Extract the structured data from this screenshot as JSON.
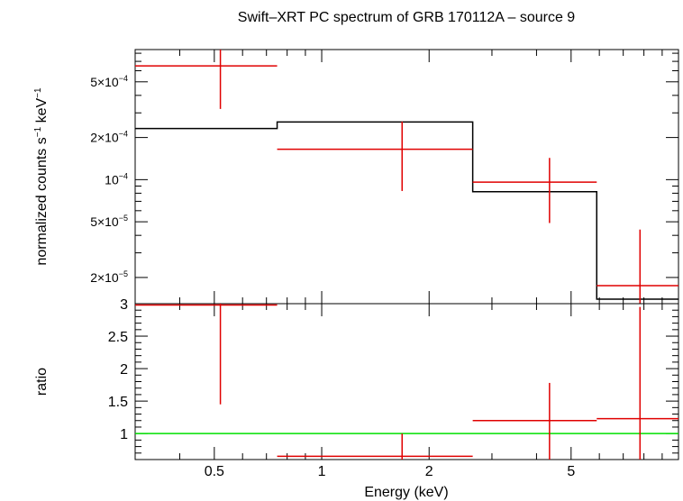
{
  "chart_data": {
    "type": "scatter",
    "title": "Swift–XRT PC spectrum of GRB 170112A – source 9",
    "xlabel": "Energy (keV)",
    "x_scale": "log",
    "xlim": [
      0.3,
      10
    ],
    "x_ticks": [
      {
        "value": 0.5,
        "label": "0.5"
      },
      {
        "value": 1,
        "label": "1"
      },
      {
        "value": 2,
        "label": "2"
      },
      {
        "value": 5,
        "label": "5"
      }
    ],
    "top_panel": {
      "ylabel_main": "normalized counts s",
      "ylabel_sup1": "−1",
      "ylabel_mid": " keV",
      "ylabel_sup2": "−1",
      "y_scale": "log",
      "ylim": [
        1.3e-05,
        0.00085
      ],
      "y_ticks": [
        {
          "value": 0.0005,
          "mant": "5×10",
          "exp": "−4"
        },
        {
          "value": 0.0002,
          "mant": "2×10",
          "exp": "−4"
        },
        {
          "value": 0.0001,
          "mant": "10",
          "exp": "−4"
        },
        {
          "value": 5e-05,
          "mant": "5×10",
          "exp": "−5"
        },
        {
          "value": 2e-05,
          "mant": "2×10",
          "exp": "−5"
        }
      ],
      "data": [
        {
          "xlo": 0.3,
          "xhi": 0.75,
          "x": 0.52,
          "y": 0.00065,
          "ylo": 0.00032,
          "yhi": 0.00085
        },
        {
          "xlo": 0.75,
          "xhi": 2.65,
          "x": 1.68,
          "y": 0.000165,
          "ylo": 8.3e-05,
          "yhi": 0.00026
        },
        {
          "xlo": 2.65,
          "xhi": 5.9,
          "x": 4.35,
          "y": 9.6e-05,
          "ylo": 4.9e-05,
          "yhi": 0.000143
        },
        {
          "xlo": 5.9,
          "xhi": 10,
          "x": 7.8,
          "y": 1.75e-05,
          "ylo": 1.25e-05,
          "yhi": 4.4e-05
        }
      ],
      "model": [
        {
          "xlo": 0.3,
          "xhi": 0.75,
          "y": 0.000232
        },
        {
          "xlo": 0.75,
          "xhi": 2.65,
          "y": 0.000258
        },
        {
          "xlo": 2.65,
          "xhi": 5.9,
          "y": 8.2e-05
        },
        {
          "xlo": 5.9,
          "xhi": 10,
          "y": 1.4e-05
        }
      ]
    },
    "bottom_panel": {
      "ylabel": "ratio",
      "y_scale": "linear",
      "ylim": [
        0.6,
        3.0
      ],
      "y_ticks": [
        {
          "value": 1,
          "label": "1"
        },
        {
          "value": 1.5,
          "label": "1.5"
        },
        {
          "value": 2,
          "label": "2"
        },
        {
          "value": 2.5,
          "label": "2.5"
        },
        {
          "value": 3,
          "label": "3"
        }
      ],
      "reference_line": 1,
      "data": [
        {
          "xlo": 0.3,
          "xhi": 0.75,
          "x": 0.52,
          "y": 2.98,
          "ylo": 1.45,
          "yhi": 3.0
        },
        {
          "xlo": 0.75,
          "xhi": 2.65,
          "x": 1.68,
          "y": 0.65,
          "ylo": 0.6,
          "yhi": 1.0
        },
        {
          "xlo": 2.65,
          "xhi": 5.9,
          "x": 4.35,
          "y": 1.2,
          "ylo": 0.6,
          "yhi": 1.78
        },
        {
          "xlo": 5.9,
          "xhi": 10,
          "x": 7.8,
          "y": 1.23,
          "ylo": 0.6,
          "yhi": 2.95
        }
      ]
    },
    "colors": {
      "data": "#e00000",
      "model": "#000000",
      "reference": "#00e000",
      "axes": "#000000"
    }
  }
}
